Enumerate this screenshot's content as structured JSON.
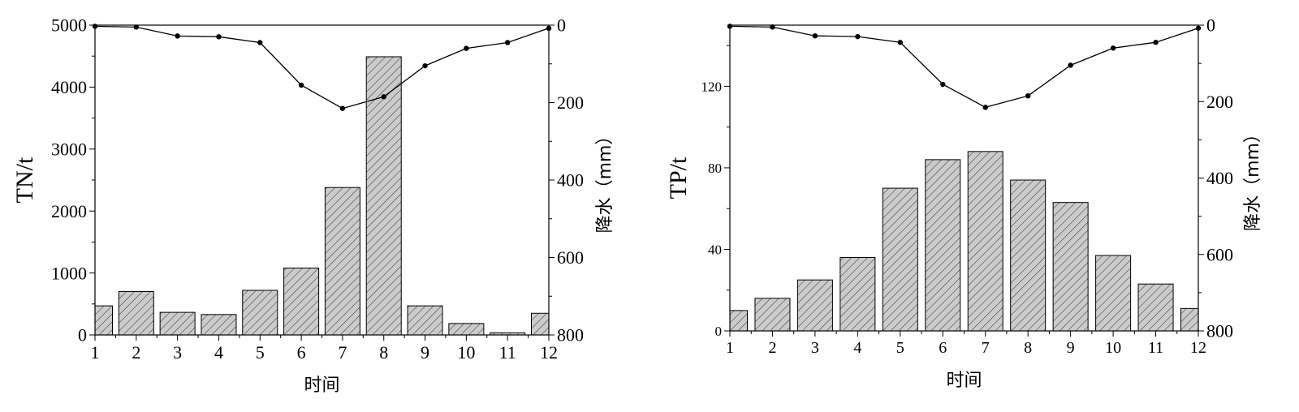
{
  "chart_data": [
    {
      "type": "bar",
      "overlay": "line",
      "x": [
        1,
        2,
        3,
        4,
        5,
        6,
        7,
        8,
        9,
        10,
        11,
        12
      ],
      "xlabel": "时间",
      "xlim": [
        1,
        12
      ],
      "xticks": [
        "1",
        "2",
        "3",
        "4",
        "5",
        "6",
        "7",
        "8",
        "9",
        "10",
        "11",
        "12"
      ],
      "ylabel": "TN/t",
      "ylim": [
        0,
        5000
      ],
      "yticks": [
        "0",
        "1000",
        "2000",
        "3000",
        "4000",
        "5000"
      ],
      "values": [
        470,
        700,
        365,
        330,
        720,
        1080,
        2380,
        4490,
        470,
        185,
        35,
        350
      ],
      "y2label": "降水（mm）",
      "y2lim": [
        0,
        800
      ],
      "y2_inverted": true,
      "y2ticks": [
        "0",
        "200",
        "400",
        "600",
        "800"
      ],
      "precipitation": [
        3,
        5,
        28,
        30,
        45,
        155,
        215,
        185,
        105,
        60,
        45,
        8
      ],
      "bar_color": "#c8c8c8",
      "line_color": "#000000",
      "grid": false
    },
    {
      "type": "bar",
      "overlay": "line",
      "x": [
        1,
        2,
        3,
        4,
        5,
        6,
        7,
        8,
        9,
        10,
        11,
        12
      ],
      "xlabel": "时间",
      "xlim": [
        1,
        12
      ],
      "xticks": [
        "1",
        "2",
        "3",
        "4",
        "5",
        "6",
        "7",
        "8",
        "9",
        "10",
        "11",
        "12"
      ],
      "ylabel": "TP/t",
      "ylim": [
        0,
        150
      ],
      "yticks": [
        "0",
        "40",
        "80",
        "120"
      ],
      "values": [
        10,
        16,
        25,
        36,
        70,
        84,
        88,
        74,
        63,
        37,
        23,
        11
      ],
      "y2label": "降水（mm）",
      "y2lim": [
        0,
        800
      ],
      "y2_inverted": true,
      "y2ticks": [
        "0",
        "200",
        "400",
        "600",
        "800"
      ],
      "precipitation": [
        3,
        5,
        28,
        30,
        45,
        155,
        215,
        185,
        105,
        60,
        45,
        8
      ],
      "bar_color": "#c8c8c8",
      "line_color": "#000000",
      "grid": false
    }
  ]
}
